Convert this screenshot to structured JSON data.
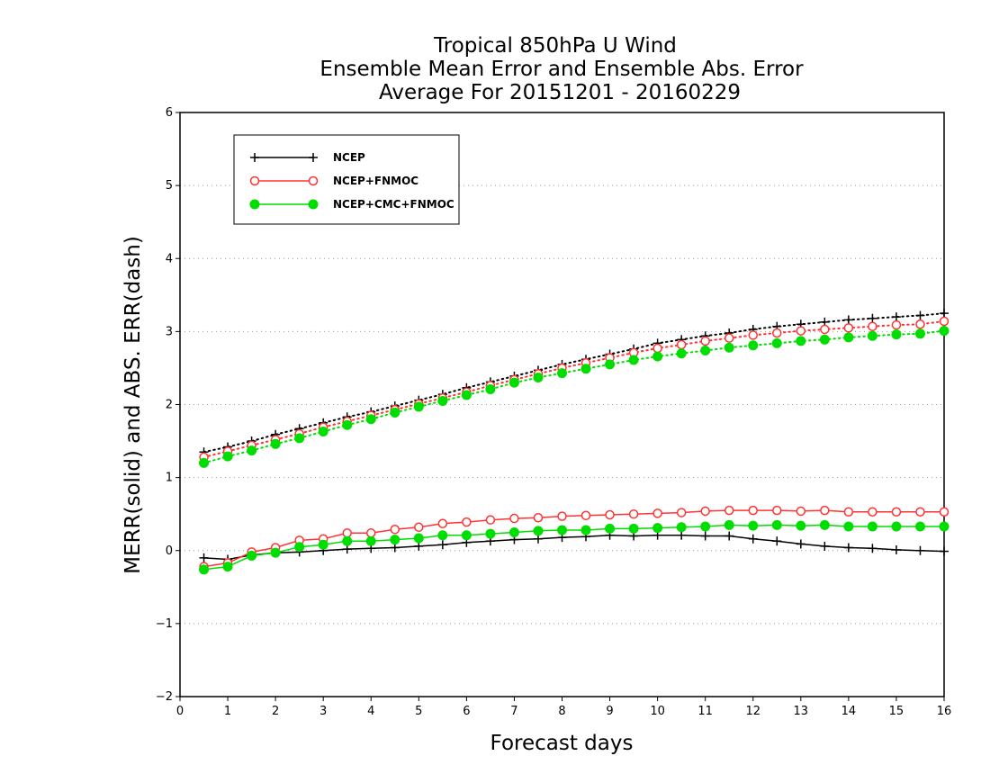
{
  "chart_data": {
    "type": "line",
    "title": [
      "Tropical 850hPa U Wind",
      "Ensemble Mean Error and Ensemble Abs. Error",
      "Average For 20151201 - 20160229"
    ],
    "xlabel": "Forecast days",
    "ylabel": "MERR(solid) and ABS. ERR(dash)",
    "xlim": [
      0,
      16
    ],
    "ylim": [
      -2,
      6
    ],
    "xticks": [
      "0",
      "1",
      "2",
      "3",
      "4",
      "5",
      "6",
      "7",
      "8",
      "9",
      "10",
      "11",
      "12",
      "13",
      "14",
      "15",
      "16"
    ],
    "yticks": [
      "-2",
      "-1",
      "0",
      "1",
      "2",
      "3",
      "4",
      "5",
      "6"
    ],
    "grid": "dotted horizontal",
    "legend_position": "top-left",
    "x": [
      0.5,
      1,
      1.5,
      2,
      2.5,
      3,
      3.5,
      4,
      4.5,
      5,
      5.5,
      6,
      6.5,
      7,
      7.5,
      8,
      8.5,
      9,
      9.5,
      10,
      10.5,
      11,
      11.5,
      12,
      12.5,
      13,
      13.5,
      14,
      14.5,
      15,
      15.5,
      16
    ],
    "series": [
      {
        "name": "NCEP",
        "color": "#000000",
        "marker": "plus",
        "merr": [
          -0.1,
          -0.12,
          -0.06,
          -0.03,
          -0.02,
          0.0,
          0.02,
          0.03,
          0.04,
          0.06,
          0.08,
          0.11,
          0.13,
          0.15,
          0.16,
          0.18,
          0.19,
          0.21,
          0.2,
          0.21,
          0.21,
          0.2,
          0.2,
          0.16,
          0.13,
          0.09,
          0.06,
          0.04,
          0.03,
          0.01,
          0.0,
          -0.01
        ],
        "abserr": [
          1.35,
          1.42,
          1.5,
          1.59,
          1.67,
          1.75,
          1.83,
          1.9,
          1.98,
          2.06,
          2.14,
          2.23,
          2.31,
          2.39,
          2.47,
          2.55,
          2.62,
          2.69,
          2.76,
          2.84,
          2.89,
          2.94,
          2.98,
          3.03,
          3.07,
          3.1,
          3.13,
          3.16,
          3.18,
          3.2,
          3.22,
          3.25
        ]
      },
      {
        "name": "NCEP+FNMOC",
        "color": "#ff3333",
        "marker": "open-circle",
        "merr": [
          -0.22,
          -0.17,
          -0.02,
          0.04,
          0.14,
          0.16,
          0.24,
          0.24,
          0.29,
          0.32,
          0.37,
          0.39,
          0.42,
          0.44,
          0.45,
          0.47,
          0.48,
          0.49,
          0.5,
          0.51,
          0.52,
          0.54,
          0.55,
          0.55,
          0.55,
          0.54,
          0.55,
          0.53,
          0.53,
          0.53,
          0.53,
          0.53
        ],
        "abserr": [
          1.28,
          1.36,
          1.44,
          1.52,
          1.6,
          1.69,
          1.77,
          1.85,
          1.93,
          2.01,
          2.09,
          2.17,
          2.26,
          2.34,
          2.42,
          2.5,
          2.57,
          2.64,
          2.71,
          2.77,
          2.82,
          2.87,
          2.91,
          2.95,
          2.98,
          3.01,
          3.03,
          3.05,
          3.07,
          3.09,
          3.1,
          3.14
        ]
      },
      {
        "name": "NCEP+CMC+FNMOC",
        "color": "#00dd00",
        "marker": "filled-circle",
        "merr": [
          -0.26,
          -0.22,
          -0.07,
          -0.03,
          0.05,
          0.08,
          0.13,
          0.13,
          0.15,
          0.17,
          0.21,
          0.21,
          0.23,
          0.25,
          0.27,
          0.28,
          0.28,
          0.3,
          0.3,
          0.31,
          0.32,
          0.33,
          0.35,
          0.34,
          0.35,
          0.34,
          0.35,
          0.33,
          0.33,
          0.33,
          0.33,
          0.33
        ],
        "abserr": [
          1.2,
          1.29,
          1.37,
          1.46,
          1.54,
          1.63,
          1.72,
          1.8,
          1.89,
          1.97,
          2.05,
          2.13,
          2.21,
          2.3,
          2.37,
          2.43,
          2.49,
          2.55,
          2.61,
          2.66,
          2.7,
          2.74,
          2.78,
          2.81,
          2.84,
          2.87,
          2.89,
          2.92,
          2.94,
          2.96,
          2.97,
          3.01
        ]
      }
    ]
  }
}
